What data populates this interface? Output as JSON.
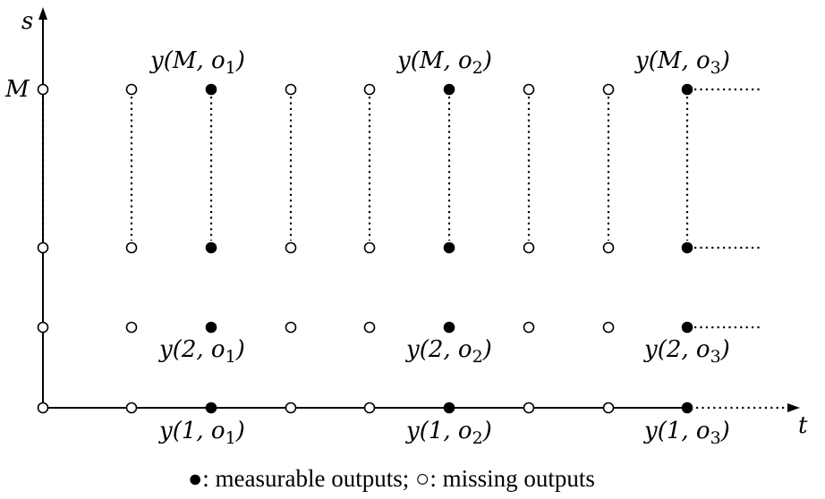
{
  "axes": {
    "x_label": "t",
    "y_label": "s",
    "y_tick_label": "M"
  },
  "top_labels": [
    "y(M, o1)",
    "y(M, o2)",
    "y(M, o3)"
  ],
  "level2_labels": [
    "y(2, o1)",
    "y(2, o2)",
    "y(2, o3)"
  ],
  "bottom_labels": [
    "y(1, o1)",
    "y(1, o2)",
    "y(1, o3)"
  ],
  "caption": "●: measurable outputs; ○: missing outputs",
  "grid": {
    "columns": 9,
    "rows": 4,
    "measurable_columns": [
      3,
      6,
      9
    ],
    "missing_columns": [
      1,
      2,
      4,
      5,
      7,
      8
    ]
  },
  "colors": {
    "ink": "#000000",
    "background": "#ffffff"
  }
}
